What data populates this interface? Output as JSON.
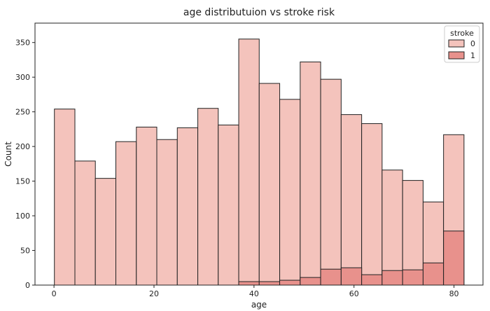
{
  "chart_data": {
    "type": "bar",
    "title": "age distributuion vs stroke risk",
    "xlabel": "age",
    "ylabel": "Count",
    "xlim": [
      -3.8,
      85.8
    ],
    "ylim": [
      0,
      378
    ],
    "x_ticks": [
      0,
      20,
      40,
      60,
      80
    ],
    "y_ticks": [
      0,
      50,
      100,
      150,
      200,
      250,
      300,
      350
    ],
    "grid": false,
    "legend": {
      "title": "stroke",
      "placement": "top-right"
    },
    "bin_edges": [
      0.08,
      4.18,
      8.27,
      12.37,
      16.47,
      20.56,
      24.66,
      28.76,
      32.85,
      36.95,
      41.04,
      45.14,
      49.24,
      53.33,
      57.43,
      61.53,
      65.62,
      69.72,
      73.82,
      77.91,
      82.0
    ],
    "series": [
      {
        "name": "0",
        "color": "#f4c3bc",
        "values": [
          254,
          179,
          154,
          207,
          228,
          210,
          227,
          255,
          231,
          355,
          291,
          268,
          322,
          297,
          246,
          233,
          166,
          151,
          120,
          217
        ]
      },
      {
        "name": "1",
        "color": "#e8918c",
        "values": [
          0,
          0,
          0,
          0,
          0,
          0,
          0,
          0,
          0,
          5,
          5,
          7,
          11,
          23,
          25,
          15,
          21,
          22,
          32,
          78
        ]
      }
    ],
    "edge_color": "#222222"
  }
}
